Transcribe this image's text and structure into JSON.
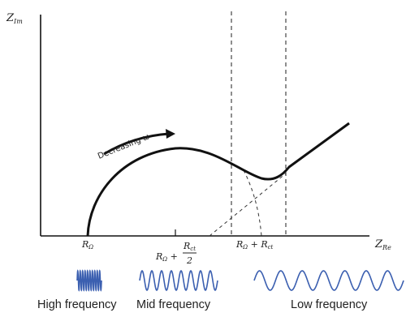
{
  "axes": {
    "y_label_base": "Z",
    "y_label_sub": "Im",
    "x_label_base": "Z",
    "x_label_sub": "Re"
  },
  "annotation": {
    "arrow_text": "Decreasing ω"
  },
  "tick_labels": {
    "r_omega_base": "R",
    "r_omega_sub": "Ω",
    "mid_prefix_base": "R",
    "mid_prefix_sub": "Ω",
    "mid_plus": " + ",
    "mid_num_base": "R",
    "mid_num_sub": "ct",
    "mid_den": "2",
    "sum_a_base": "R",
    "sum_a_sub": "Ω",
    "sum_plus": " + ",
    "sum_b_base": "R",
    "sum_b_sub": "ct"
  },
  "frequency_labels": {
    "high": "High frequency",
    "mid": "Mid frequency",
    "low": "Low frequency"
  },
  "colors": {
    "curve": "#111111",
    "axes": "#111111",
    "dashed": "#333333",
    "waves": "#3b5fb0"
  }
}
